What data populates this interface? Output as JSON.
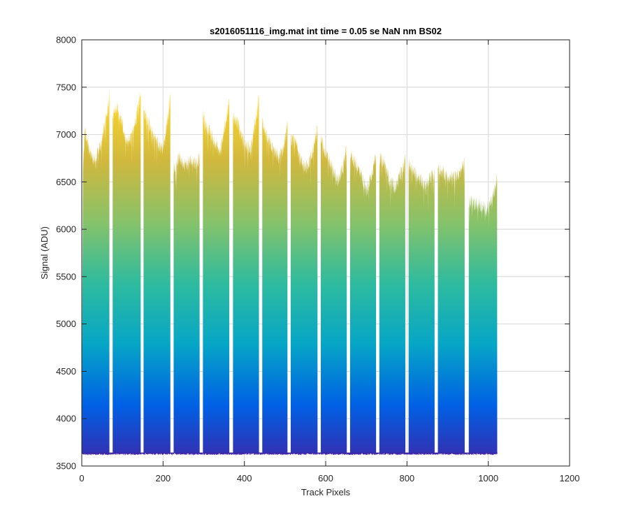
{
  "chart_data": {
    "type": "area",
    "title": "s2016051116_img.mat int time = 0.05 se  NaN nm BS02",
    "xlabel": "Track Pixels",
    "ylabel": "Signal (ADU)",
    "xlim": [
      0,
      1200
    ],
    "ylim": [
      3500,
      8000
    ],
    "xticks": [
      0,
      200,
      400,
      600,
      800,
      1000,
      1200
    ],
    "yticks": [
      3500,
      4000,
      4500,
      5000,
      5500,
      6000,
      6500,
      7000,
      7500,
      8000
    ],
    "grid": true,
    "baseline": 3640,
    "colormap": [
      "#3e26a8",
      "#0061e5",
      "#06a6c6",
      "#2ebb9e",
      "#86c26a",
      "#d0b83e",
      "#f9d52b",
      "#f9fb0e"
    ],
    "bands": [
      {
        "x": [
          0,
          68
        ],
        "profile": [
          [
            0,
            4000
          ],
          [
            3,
            6650
          ],
          [
            8,
            7050
          ],
          [
            18,
            6850
          ],
          [
            32,
            6700
          ],
          [
            50,
            6950
          ],
          [
            62,
            7250
          ],
          [
            68,
            7450
          ]
        ]
      },
      {
        "x": [
          76,
          145
        ],
        "profile": [
          [
            76,
            7200
          ],
          [
            88,
            7300
          ],
          [
            100,
            7100
          ],
          [
            110,
            6900
          ],
          [
            125,
            7000
          ],
          [
            138,
            7300
          ],
          [
            145,
            7450
          ]
        ]
      },
      {
        "x": [
          152,
          218
        ],
        "profile": [
          [
            152,
            7250
          ],
          [
            162,
            7150
          ],
          [
            175,
            7000
          ],
          [
            190,
            6900
          ],
          [
            200,
            6850
          ],
          [
            210,
            7150
          ],
          [
            218,
            7400
          ]
        ]
      },
      {
        "x": [
          226,
          290
        ],
        "profile": [
          [
            226,
            6650
          ],
          [
            240,
            6750
          ],
          [
            255,
            6680
          ],
          [
            270,
            6720
          ],
          [
            282,
            6700
          ],
          [
            290,
            6750
          ]
        ]
      },
      {
        "x": [
          298,
          363
        ],
        "profile": [
          [
            298,
            7200
          ],
          [
            310,
            7050
          ],
          [
            325,
            6950
          ],
          [
            340,
            6800
          ],
          [
            352,
            7100
          ],
          [
            363,
            7350
          ]
        ]
      },
      {
        "x": [
          372,
          436
        ],
        "profile": [
          [
            372,
            7200
          ],
          [
            385,
            7100
          ],
          [
            400,
            6900
          ],
          [
            415,
            6850
          ],
          [
            426,
            7100
          ],
          [
            436,
            7400
          ]
        ]
      },
      {
        "x": [
          444,
          506
        ],
        "profile": [
          [
            444,
            7150
          ],
          [
            456,
            6950
          ],
          [
            470,
            6850
          ],
          [
            484,
            6750
          ],
          [
            496,
            6850
          ],
          [
            506,
            7100
          ]
        ]
      },
      {
        "x": [
          514,
          580
        ],
        "profile": [
          [
            514,
            6950
          ],
          [
            528,
            6900
          ],
          [
            542,
            6700
          ],
          [
            556,
            6650
          ],
          [
            568,
            6850
          ],
          [
            580,
            7050
          ]
        ]
      },
      {
        "x": [
          588,
          652
        ],
        "profile": [
          [
            588,
            6950
          ],
          [
            600,
            6800
          ],
          [
            615,
            6650
          ],
          [
            630,
            6500
          ],
          [
            642,
            6650
          ],
          [
            652,
            6850
          ]
        ]
      },
      {
        "x": [
          660,
          724
        ],
        "profile": [
          [
            660,
            6800
          ],
          [
            672,
            6700
          ],
          [
            686,
            6600
          ],
          [
            700,
            6400
          ],
          [
            714,
            6600
          ],
          [
            724,
            6800
          ]
        ]
      },
      {
        "x": [
          732,
          796
        ],
        "profile": [
          [
            732,
            6750
          ],
          [
            744,
            6700
          ],
          [
            758,
            6500
          ],
          [
            772,
            6450
          ],
          [
            786,
            6600
          ],
          [
            796,
            6750
          ]
        ]
      },
      {
        "x": [
          804,
          868
        ],
        "profile": [
          [
            804,
            6700
          ],
          [
            816,
            6600
          ],
          [
            830,
            6550
          ],
          [
            845,
            6450
          ],
          [
            858,
            6550
          ],
          [
            868,
            6600
          ]
        ]
      },
      {
        "x": [
          876,
          942
        ],
        "profile": [
          [
            876,
            6650
          ],
          [
            888,
            6600
          ],
          [
            902,
            6550
          ],
          [
            916,
            6550
          ],
          [
            930,
            6600
          ],
          [
            942,
            6700
          ]
        ]
      },
      {
        "x": [
          952,
          1022
        ],
        "profile": [
          [
            952,
            6300
          ],
          [
            965,
            6280
          ],
          [
            980,
            6250
          ],
          [
            995,
            6200
          ],
          [
            1010,
            6300
          ],
          [
            1022,
            6550
          ]
        ]
      }
    ]
  }
}
